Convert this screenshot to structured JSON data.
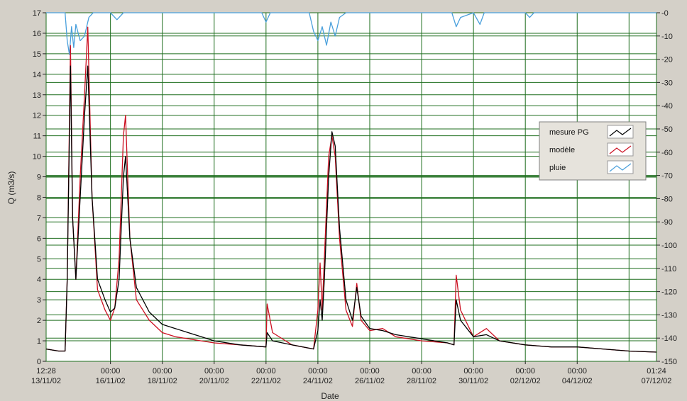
{
  "chart_data": {
    "type": "line",
    "xlabel": "Date",
    "ylabel": "Q (m3/s)",
    "y2label": "",
    "ylim": [
      0,
      17
    ],
    "y2lim": [
      0,
      150
    ],
    "y2_inverted": true,
    "yticks": [
      0,
      1,
      2,
      3,
      4,
      5,
      6,
      7,
      8,
      9,
      10,
      11,
      12,
      13,
      14,
      15,
      16,
      17
    ],
    "y2ticks": [
      0,
      10,
      20,
      30,
      40,
      50,
      60,
      70,
      80,
      90,
      100,
      110,
      120,
      130,
      140,
      150
    ],
    "xlim": [
      "2002-11-13 12:28",
      "2002-12-07 01:24"
    ],
    "x_start_label": [
      "12:28",
      "13/11/02"
    ],
    "x_end_label": [
      "01:24",
      "07/12/02"
    ],
    "x_ticks": [
      {
        "time": "00:00",
        "date": "16/11/02"
      },
      {
        "time": "00:00",
        "date": "18/11/02"
      },
      {
        "time": "00:00",
        "date": "20/11/02"
      },
      {
        "time": "00:00",
        "date": "22/11/02"
      },
      {
        "time": "00:00",
        "date": "24/11/02"
      },
      {
        "time": "00:00",
        "date": "26/11/02"
      },
      {
        "time": "00:00",
        "date": "28/11/02"
      },
      {
        "time": "00:00",
        "date": "30/11/02"
      },
      {
        "time": "00:00",
        "date": "02/12/02"
      },
      {
        "time": "00:00",
        "date": "04/12/02"
      }
    ],
    "grid": true,
    "legend_position": "right",
    "legend": [
      "mesure PG",
      "modèle",
      "pluie"
    ],
    "colors": {
      "mesure PG": "#000000",
      "modèle": "#cc1122",
      "pluie": "#4aa0dc",
      "grid": "#1e6e1e",
      "plot_bg": "#ffffff",
      "frame_bg": "#d4d0c8"
    },
    "series": [
      {
        "name": "mesure PG",
        "axis": "left",
        "points": [
          [
            "2002-11-13 12:28",
            0.6
          ],
          [
            "2002-11-14 00:00",
            0.5
          ],
          [
            "2002-11-14 06:00",
            0.5
          ],
          [
            "2002-11-14 08:00",
            4
          ],
          [
            "2002-11-14 11:00",
            14.4
          ],
          [
            "2002-11-14 13:00",
            7
          ],
          [
            "2002-11-14 16:00",
            4
          ],
          [
            "2002-11-14 20:00",
            8
          ],
          [
            "2002-11-15 00:00",
            12
          ],
          [
            "2002-11-15 03:00",
            14.4
          ],
          [
            "2002-11-15 07:00",
            8
          ],
          [
            "2002-11-15 12:00",
            4
          ],
          [
            "2002-11-15 19:00",
            3
          ],
          [
            "2002-11-16 00:00",
            2.4
          ],
          [
            "2002-11-16 04:00",
            2.6
          ],
          [
            "2002-11-16 08:00",
            4
          ],
          [
            "2002-11-16 12:00",
            9
          ],
          [
            "2002-11-16 14:00",
            10
          ],
          [
            "2002-11-16 18:00",
            6
          ],
          [
            "2002-11-17 00:00",
            3.6
          ],
          [
            "2002-11-17 12:00",
            2.4
          ],
          [
            "2002-11-18 00:00",
            1.8
          ],
          [
            "2002-11-18 12:00",
            1.6
          ],
          [
            "2002-11-19 00:00",
            1.4
          ],
          [
            "2002-11-19 12:00",
            1.2
          ],
          [
            "2002-11-20 00:00",
            1.0
          ],
          [
            "2002-11-21 00:00",
            0.8
          ],
          [
            "2002-11-22 00:00",
            0.7
          ],
          [
            "2002-11-22 01:00",
            1.4
          ],
          [
            "2002-11-22 06:00",
            1.0
          ],
          [
            "2002-11-23 00:00",
            0.8
          ],
          [
            "2002-11-23 20:00",
            0.6
          ],
          [
            "2002-11-24 00:00",
            1.5
          ],
          [
            "2002-11-24 02:00",
            3.0
          ],
          [
            "2002-11-24 04:00",
            2.0
          ],
          [
            "2002-11-24 06:00",
            4.0
          ],
          [
            "2002-11-24 10:00",
            9.0
          ],
          [
            "2002-11-24 13:00",
            11.2
          ],
          [
            "2002-11-24 16:00",
            10.5
          ],
          [
            "2002-11-24 20:00",
            6.5
          ],
          [
            "2002-11-25 02:00",
            3.0
          ],
          [
            "2002-11-25 08:00",
            2.0
          ],
          [
            "2002-11-25 12:00",
            3.6
          ],
          [
            "2002-11-25 16:00",
            2.2
          ],
          [
            "2002-11-26 00:00",
            1.6
          ],
          [
            "2002-11-26 12:00",
            1.5
          ],
          [
            "2002-11-27 00:00",
            1.3
          ],
          [
            "2002-11-28 00:00",
            1.1
          ],
          [
            "2002-11-29 00:00",
            0.9
          ],
          [
            "2002-11-29 06:00",
            0.8
          ],
          [
            "2002-11-29 08:00",
            3.0
          ],
          [
            "2002-11-29 12:00",
            2.0
          ],
          [
            "2002-11-30 00:00",
            1.2
          ],
          [
            "2002-11-30 12:00",
            1.3
          ],
          [
            "2002-12-01 00:00",
            1.0
          ],
          [
            "2002-12-02 00:00",
            0.8
          ],
          [
            "2002-12-03 00:00",
            0.7
          ],
          [
            "2002-12-04 00:00",
            0.7
          ],
          [
            "2002-12-05 00:00",
            0.6
          ],
          [
            "2002-12-06 00:00",
            0.5
          ],
          [
            "2002-12-07 01:24",
            0.45
          ]
        ]
      },
      {
        "name": "modèle",
        "axis": "left",
        "points": [
          [
            "2002-11-13 12:28",
            0.6
          ],
          [
            "2002-11-14 00:00",
            0.5
          ],
          [
            "2002-11-14 06:00",
            0.5
          ],
          [
            "2002-11-14 08:00",
            4
          ],
          [
            "2002-11-14 11:00",
            15.4
          ],
          [
            "2002-11-14 13:00",
            7
          ],
          [
            "2002-11-14 16:00",
            4
          ],
          [
            "2002-11-14 20:00",
            9
          ],
          [
            "2002-11-15 00:00",
            13
          ],
          [
            "2002-11-15 03:00",
            16.3
          ],
          [
            "2002-11-15 07:00",
            8
          ],
          [
            "2002-11-15 12:00",
            3.5
          ],
          [
            "2002-11-15 19:00",
            2.5
          ],
          [
            "2002-11-16 00:00",
            2.0
          ],
          [
            "2002-11-16 04:00",
            2.6
          ],
          [
            "2002-11-16 08:00",
            5
          ],
          [
            "2002-11-16 12:00",
            11
          ],
          [
            "2002-11-16 14:00",
            12
          ],
          [
            "2002-11-16 18:00",
            6
          ],
          [
            "2002-11-17 00:00",
            3.0
          ],
          [
            "2002-11-17 12:00",
            2.0
          ],
          [
            "2002-11-18 00:00",
            1.4
          ],
          [
            "2002-11-18 12:00",
            1.2
          ],
          [
            "2002-11-19 00:00",
            1.1
          ],
          [
            "2002-11-19 12:00",
            1.0
          ],
          [
            "2002-11-20 00:00",
            0.9
          ],
          [
            "2002-11-21 00:00",
            0.8
          ],
          [
            "2002-11-22 00:00",
            0.7
          ],
          [
            "2002-11-22 01:00",
            2.8
          ],
          [
            "2002-11-22 06:00",
            1.4
          ],
          [
            "2002-11-23 00:00",
            0.8
          ],
          [
            "2002-11-23 20:00",
            0.6
          ],
          [
            "2002-11-24 00:00",
            2.5
          ],
          [
            "2002-11-24 02:00",
            4.8
          ],
          [
            "2002-11-24 04:00",
            2.5
          ],
          [
            "2002-11-24 06:00",
            5.0
          ],
          [
            "2002-11-24 10:00",
            10.0
          ],
          [
            "2002-11-24 13:00",
            11.0
          ],
          [
            "2002-11-24 16:00",
            10.0
          ],
          [
            "2002-11-24 20:00",
            6.0
          ],
          [
            "2002-11-25 02:00",
            2.5
          ],
          [
            "2002-11-25 08:00",
            1.7
          ],
          [
            "2002-11-25 12:00",
            3.8
          ],
          [
            "2002-11-25 16:00",
            2.0
          ],
          [
            "2002-11-26 00:00",
            1.5
          ],
          [
            "2002-11-26 12:00",
            1.6
          ],
          [
            "2002-11-27 00:00",
            1.2
          ],
          [
            "2002-11-28 00:00",
            1.0
          ],
          [
            "2002-11-29 00:00",
            0.9
          ],
          [
            "2002-11-29 06:00",
            0.8
          ],
          [
            "2002-11-29 08:00",
            4.2
          ],
          [
            "2002-11-29 12:00",
            2.5
          ],
          [
            "2002-11-30 00:00",
            1.2
          ],
          [
            "2002-11-30 12:00",
            1.6
          ],
          [
            "2002-12-01 00:00",
            1.0
          ],
          [
            "2002-12-02 00:00",
            0.8
          ],
          [
            "2002-12-03 00:00",
            0.7
          ],
          [
            "2002-12-04 00:00",
            0.7
          ],
          [
            "2002-12-05 00:00",
            0.6
          ],
          [
            "2002-12-06 00:00",
            0.5
          ],
          [
            "2002-12-07 01:24",
            0.45
          ]
        ]
      },
      {
        "name": "pluie",
        "axis": "right",
        "points": [
          [
            "2002-11-13 12:28",
            0
          ],
          [
            "2002-11-14 06:00",
            0
          ],
          [
            "2002-11-14 08:00",
            12
          ],
          [
            "2002-11-14 10:00",
            18
          ],
          [
            "2002-11-14 12:00",
            6
          ],
          [
            "2002-11-14 14:00",
            15
          ],
          [
            "2002-11-14 16:00",
            5
          ],
          [
            "2002-11-14 20:00",
            12
          ],
          [
            "2002-11-15 00:00",
            10
          ],
          [
            "2002-11-15 04:00",
            2
          ],
          [
            "2002-11-15 08:00",
            0
          ],
          [
            "2002-11-16 00:00",
            0
          ],
          [
            "2002-11-16 06:00",
            3
          ],
          [
            "2002-11-16 12:00",
            0
          ],
          [
            "2002-11-21 20:00",
            0
          ],
          [
            "2002-11-22 00:00",
            4
          ],
          [
            "2002-11-22 04:00",
            0
          ],
          [
            "2002-11-23 16:00",
            0
          ],
          [
            "2002-11-23 20:00",
            8
          ],
          [
            "2002-11-24 00:00",
            12
          ],
          [
            "2002-11-24 04:00",
            6
          ],
          [
            "2002-11-24 08:00",
            14
          ],
          [
            "2002-11-24 12:00",
            4
          ],
          [
            "2002-11-24 16:00",
            10
          ],
          [
            "2002-11-24 20:00",
            2
          ],
          [
            "2002-11-25 02:00",
            0
          ],
          [
            "2002-11-29 04:00",
            0
          ],
          [
            "2002-11-29 08:00",
            6
          ],
          [
            "2002-11-29 12:00",
            2
          ],
          [
            "2002-11-30 00:00",
            0
          ],
          [
            "2002-11-30 06:00",
            5
          ],
          [
            "2002-11-30 10:00",
            0
          ],
          [
            "2002-12-02 00:00",
            0
          ],
          [
            "2002-12-02 04:00",
            2
          ],
          [
            "2002-12-02 08:00",
            0
          ],
          [
            "2002-12-07 01:24",
            0
          ]
        ]
      }
    ]
  }
}
